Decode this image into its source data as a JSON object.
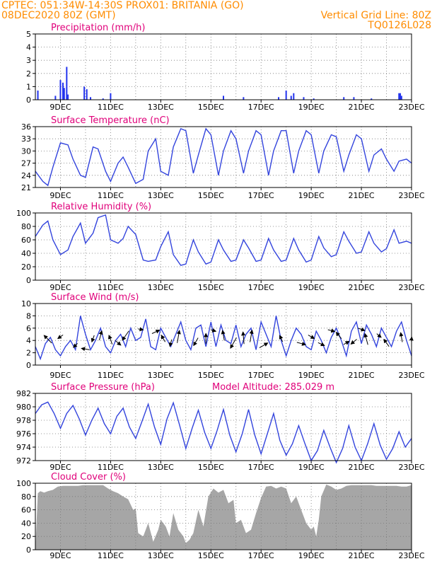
{
  "header": {
    "line1": "CPTEC:  051:34W-14:30S  PROX01: BRITANIA (GO)",
    "line2_left": "08DEC2020 80Z (GMT)",
    "line2_right": "Vertical Grid Line: 80Z",
    "line3_right": "TQ0126L028"
  },
  "colors": {
    "header": "#ff8c00",
    "panel_title": "#e0007a",
    "series": "#3344dd",
    "bars": "#2233ee",
    "cloud": "#a6a6a6",
    "arrow": "#000000"
  },
  "chart_data": [
    {
      "type": "bar",
      "title": "Precipitation (mm/h)",
      "ylim": [
        0,
        5
      ],
      "yticks": [
        0,
        1,
        2,
        3,
        4,
        5
      ],
      "grid": true,
      "x": [
        8.1,
        8.8,
        9.0,
        9.1,
        9.15,
        9.25,
        9.3,
        9.95,
        10.05,
        10.2,
        10.7,
        11.0,
        15.5,
        16.3,
        17.7,
        18.0,
        18.2,
        18.3,
        18.7,
        19.1,
        20.3,
        20.7,
        21.4,
        22.5,
        22.55,
        22.6
      ],
      "values": [
        0.7,
        0.3,
        1.5,
        1.3,
        0.9,
        2.5,
        0.4,
        1.0,
        0.8,
        0.2,
        0.1,
        0.5,
        0.3,
        0.2,
        0.2,
        0.7,
        0.3,
        0.5,
        0.2,
        0.1,
        0.2,
        0.2,
        0.1,
        0.5,
        0.5,
        0.3
      ]
    },
    {
      "type": "line",
      "title": "Surface Temperature (nC)",
      "ylim": [
        21,
        36
      ],
      "yticks": [
        21,
        24,
        27,
        30,
        33,
        36
      ],
      "grid": true,
      "series": [
        {
          "x": [
            8.0,
            8.3,
            8.5,
            8.7,
            9.0,
            9.3,
            9.5,
            9.8,
            10.0,
            10.3,
            10.5,
            10.8,
            11.0,
            11.3,
            11.5,
            11.7,
            12.0,
            12.3,
            12.5,
            12.8,
            13.0,
            13.3,
            13.5,
            13.8,
            14.0,
            14.3,
            14.5,
            14.8,
            15.0,
            15.3,
            15.5,
            15.8,
            16.0,
            16.3,
            16.5,
            16.8,
            17.0,
            17.3,
            17.5,
            17.8,
            18.0,
            18.3,
            18.5,
            18.8,
            19.0,
            19.3,
            19.5,
            19.8,
            20.0,
            20.3,
            20.5,
            20.8,
            21.0,
            21.3,
            21.5,
            21.8,
            22.0,
            22.3,
            22.5,
            22.8,
            23.0
          ],
          "y": [
            25.0,
            22.5,
            21.5,
            26.0,
            32.0,
            31.5,
            28.0,
            24.0,
            23.5,
            31.0,
            30.5,
            25.0,
            22.5,
            27.0,
            28.5,
            26.0,
            22.0,
            23.0,
            30.0,
            33.0,
            25.0,
            24.0,
            31.0,
            35.5,
            35.0,
            24.5,
            29.0,
            35.5,
            34.0,
            24.0,
            30.0,
            35.0,
            33.0,
            24.5,
            30.0,
            35.0,
            34.0,
            24.0,
            30.0,
            35.0,
            35.0,
            24.5,
            30.0,
            35.0,
            34.0,
            24.5,
            30.0,
            34.0,
            33.5,
            25.0,
            29.0,
            34.0,
            33.0,
            25.0,
            29.0,
            30.5,
            28.0,
            25.0,
            27.5,
            28.0,
            27.0
          ]
        }
      ]
    },
    {
      "type": "line",
      "title": "Relative Humidity (%)",
      "ylim": [
        0,
        100
      ],
      "yticks": [
        0,
        20,
        40,
        60,
        80,
        100
      ],
      "grid": true,
      "series": [
        {
          "x": [
            8.0,
            8.3,
            8.5,
            8.7,
            9.0,
            9.3,
            9.5,
            9.8,
            10.0,
            10.3,
            10.5,
            10.8,
            11.0,
            11.3,
            11.5,
            11.7,
            12.0,
            12.3,
            12.5,
            12.8,
            13.0,
            13.3,
            13.5,
            13.8,
            14.0,
            14.3,
            14.5,
            14.8,
            15.0,
            15.3,
            15.5,
            15.8,
            16.0,
            16.3,
            16.5,
            16.8,
            17.0,
            17.3,
            17.5,
            17.8,
            18.0,
            18.3,
            18.5,
            18.8,
            19.0,
            19.3,
            19.5,
            19.8,
            20.0,
            20.3,
            20.5,
            20.8,
            21.0,
            21.3,
            21.5,
            21.8,
            22.0,
            22.3,
            22.5,
            22.8,
            23.0
          ],
          "y": [
            65.0,
            82.0,
            88.0,
            60.0,
            38.0,
            45.0,
            65.0,
            85.0,
            55.0,
            70.0,
            93.0,
            97.0,
            60.0,
            55.0,
            62.0,
            80.0,
            68.0,
            30.0,
            28.0,
            30.0,
            50.0,
            72.0,
            38.0,
            22.0,
            24.0,
            60.0,
            42.0,
            24.0,
            27.0,
            60.0,
            45.0,
            28.0,
            30.0,
            60.0,
            48.0,
            28.0,
            30.0,
            62.0,
            45.0,
            28.0,
            30.0,
            62.0,
            45.0,
            27.0,
            30.0,
            65.0,
            48.0,
            35.0,
            38.0,
            72.0,
            58.0,
            40.0,
            42.0,
            72.0,
            55.0,
            42.0,
            47.0,
            75.0,
            55.0,
            58.0,
            55.0
          ]
        }
      ]
    },
    {
      "type": "line",
      "title": "Surface Wind (m/s)",
      "ylim": [
        0,
        10
      ],
      "yticks": [
        0,
        2,
        4,
        6,
        8,
        10
      ],
      "grid": true,
      "series": [
        {
          "x": [
            8.0,
            8.2,
            8.4,
            8.6,
            8.8,
            9.0,
            9.2,
            9.4,
            9.6,
            9.8,
            10.0,
            10.2,
            10.4,
            10.6,
            10.8,
            11.0,
            11.2,
            11.4,
            11.6,
            11.8,
            12.0,
            12.2,
            12.4,
            12.6,
            12.8,
            13.0,
            13.2,
            13.4,
            13.6,
            13.8,
            14.0,
            14.2,
            14.4,
            14.6,
            14.8,
            15.0,
            15.2,
            15.4,
            15.6,
            15.8,
            16.0,
            16.2,
            16.4,
            16.6,
            16.8,
            17.0,
            17.2,
            17.4,
            17.6,
            17.8,
            18.0,
            18.2,
            18.4,
            18.6,
            18.8,
            19.0,
            19.2,
            19.4,
            19.6,
            19.8,
            20.0,
            20.2,
            20.4,
            20.6,
            20.8,
            21.0,
            21.2,
            21.4,
            21.6,
            21.8,
            22.0,
            22.2,
            22.4,
            22.6,
            22.8,
            23.0
          ],
          "y": [
            3.0,
            1.0,
            3.5,
            4.5,
            2.5,
            1.5,
            3.0,
            4.0,
            2.5,
            8.0,
            5.0,
            2.5,
            4.0,
            6.0,
            3.0,
            2.0,
            4.0,
            5.0,
            3.0,
            6.0,
            4.0,
            4.5,
            7.5,
            3.0,
            2.5,
            6.0,
            4.5,
            3.0,
            5.0,
            7.0,
            4.0,
            2.5,
            6.0,
            6.5,
            3.0,
            7.0,
            3.0,
            6.5,
            4.0,
            3.5,
            6.5,
            3.0,
            5.0,
            6.0,
            2.5,
            7.0,
            5.0,
            3.0,
            8.0,
            4.0,
            1.5,
            4.0,
            6.0,
            5.0,
            3.0,
            2.5,
            5.5,
            4.0,
            2.0,
            4.5,
            6.0,
            4.0,
            1.5,
            5.5,
            7.0,
            3.5,
            6.5,
            5.0,
            3.0,
            6.0,
            4.5,
            3.0,
            5.5,
            7.0,
            4.0,
            1.5
          ]
        }
      ],
      "wind_arrows": [
        {
          "x": 8.5,
          "y": 4.2,
          "dir_deg": 135,
          "speed": 3.4
        },
        {
          "x": 9.0,
          "y": 4.6,
          "dir_deg": 215,
          "speed": 2.0
        },
        {
          "x": 9.6,
          "y": 3.2,
          "dir_deg": 225,
          "speed": 1.8
        },
        {
          "x": 10.0,
          "y": 2.6,
          "dir_deg": 170,
          "speed": 2.6
        },
        {
          "x": 10.3,
          "y": 4.3,
          "dir_deg": 250,
          "speed": 2.2
        },
        {
          "x": 10.6,
          "y": 4.8,
          "dir_deg": 75,
          "speed": 3.0
        },
        {
          "x": 11.0,
          "y": 4.1,
          "dir_deg": 110,
          "speed": 3.0
        },
        {
          "x": 11.3,
          "y": 3.6,
          "dir_deg": 320,
          "speed": 2.2
        },
        {
          "x": 11.6,
          "y": 4.8,
          "dir_deg": 235,
          "speed": 3.6
        },
        {
          "x": 12.2,
          "y": 5.8,
          "dir_deg": 350,
          "speed": 1.6
        },
        {
          "x": 12.8,
          "y": 5.4,
          "dir_deg": 25,
          "speed": 2.6
        },
        {
          "x": 13.1,
          "y": 4.3,
          "dir_deg": 120,
          "speed": 2.4
        },
        {
          "x": 13.4,
          "y": 3.6,
          "dir_deg": 255,
          "speed": 2.2
        },
        {
          "x": 13.7,
          "y": 4.6,
          "dir_deg": 80,
          "speed": 4.0
        },
        {
          "x": 14.4,
          "y": 3.8,
          "dir_deg": 240,
          "speed": 2.8
        },
        {
          "x": 14.8,
          "y": 4.3,
          "dir_deg": 90,
          "speed": 3.2
        },
        {
          "x": 15.1,
          "y": 5.6,
          "dir_deg": 345,
          "speed": 1.6
        },
        {
          "x": 15.5,
          "y": 4.8,
          "dir_deg": 100,
          "speed": 3.2
        },
        {
          "x": 15.9,
          "y": 3.6,
          "dir_deg": 240,
          "speed": 3.8
        },
        {
          "x": 16.3,
          "y": 4.4,
          "dir_deg": 95,
          "speed": 3.8
        },
        {
          "x": 16.6,
          "y": 4.7,
          "dir_deg": 80,
          "speed": 3.8
        },
        {
          "x": 17.1,
          "y": 3.2,
          "dir_deg": 30,
          "speed": 3.0
        },
        {
          "x": 17.8,
          "y": 4.3,
          "dir_deg": 115,
          "speed": 2.2
        },
        {
          "x": 18.6,
          "y": 3.5,
          "dir_deg": 345,
          "speed": 2.8
        },
        {
          "x": 19.0,
          "y": 4.6,
          "dir_deg": 330,
          "speed": 2.2
        },
        {
          "x": 19.4,
          "y": 3.4,
          "dir_deg": 335,
          "speed": 2.2
        },
        {
          "x": 19.8,
          "y": 5.6,
          "dir_deg": 345,
          "speed": 2.2
        },
        {
          "x": 20.1,
          "y": 4.8,
          "dir_deg": 130,
          "speed": 2.6
        },
        {
          "x": 20.4,
          "y": 3.6,
          "dir_deg": 30,
          "speed": 2.0
        },
        {
          "x": 20.7,
          "y": 3.8,
          "dir_deg": 220,
          "speed": 2.4
        },
        {
          "x": 21.0,
          "y": 5.8,
          "dir_deg": 340,
          "speed": 2.2
        },
        {
          "x": 21.2,
          "y": 4.2,
          "dir_deg": 105,
          "speed": 3.6
        },
        {
          "x": 21.7,
          "y": 4.8,
          "dir_deg": 320,
          "speed": 1.8
        },
        {
          "x": 22.0,
          "y": 3.6,
          "dir_deg": 125,
          "speed": 2.8
        },
        {
          "x": 22.6,
          "y": 4.5,
          "dir_deg": 100,
          "speed": 3.0
        },
        {
          "x": 23.0,
          "y": 4.2,
          "dir_deg": 85,
          "speed": 1.4
        }
      ]
    },
    {
      "type": "line",
      "title": "Surface Pressure (hPa)",
      "annotation": "Model Altitude: 285.029 m",
      "ylim": [
        972,
        982
      ],
      "yticks": [
        972,
        974,
        976,
        978,
        980,
        982
      ],
      "grid": true,
      "series": [
        {
          "x": [
            8.0,
            8.25,
            8.5,
            8.75,
            9.0,
            9.25,
            9.5,
            9.75,
            10.0,
            10.25,
            10.5,
            10.75,
            11.0,
            11.25,
            11.5,
            11.75,
            12.0,
            12.25,
            12.5,
            12.75,
            13.0,
            13.25,
            13.5,
            13.75,
            14.0,
            14.25,
            14.5,
            14.75,
            15.0,
            15.25,
            15.5,
            15.75,
            16.0,
            16.25,
            16.5,
            16.75,
            17.0,
            17.25,
            17.5,
            17.75,
            18.0,
            18.25,
            18.5,
            18.75,
            19.0,
            19.25,
            19.5,
            19.75,
            20.0,
            20.25,
            20.5,
            20.75,
            21.0,
            21.25,
            21.5,
            21.75,
            22.0,
            22.25,
            22.5,
            22.75,
            23.0
          ],
          "y": [
            979.0,
            980.3,
            980.7,
            979.0,
            976.8,
            979.0,
            980.2,
            978.2,
            975.8,
            978.0,
            979.8,
            977.5,
            976.0,
            978.6,
            979.8,
            977.0,
            975.3,
            977.8,
            980.4,
            977.0,
            974.4,
            978.2,
            980.6,
            977.3,
            973.8,
            976.8,
            979.5,
            976.2,
            973.8,
            976.5,
            979.6,
            975.8,
            973.3,
            976.0,
            979.6,
            975.8,
            973.0,
            976.0,
            979.0,
            975.0,
            972.8,
            974.5,
            977.2,
            974.5,
            972.0,
            973.5,
            976.5,
            974.0,
            971.7,
            973.8,
            977.2,
            974.0,
            972.0,
            974.5,
            977.5,
            974.3,
            972.2,
            973.8,
            976.3,
            974.0,
            975.3
          ]
        }
      ]
    },
    {
      "type": "area",
      "title": "Cloud Cover (%)",
      "ylim": [
        0,
        100
      ],
      "yticks": [
        0,
        20,
        40,
        60,
        80,
        100
      ],
      "grid": true,
      "series": [
        {
          "x": [
            8.0,
            8.1,
            8.2,
            8.35,
            8.5,
            8.7,
            8.9,
            9.1,
            9.3,
            9.5,
            9.7,
            9.9,
            10.1,
            10.3,
            10.5,
            10.7,
            10.9,
            11.1,
            11.3,
            11.5,
            11.7,
            11.9,
            12.0,
            12.1,
            12.3,
            12.5,
            12.7,
            12.9,
            13.0,
            13.2,
            13.35,
            13.5,
            13.7,
            13.9,
            14.0,
            14.15,
            14.3,
            14.5,
            14.7,
            14.9,
            15.1,
            15.3,
            15.5,
            15.7,
            15.9,
            16.0,
            16.2,
            16.4,
            16.6,
            16.8,
            17.0,
            17.2,
            17.4,
            17.6,
            17.8,
            18.0,
            18.2,
            18.4,
            18.6,
            18.8,
            19.0,
            19.1,
            19.2,
            19.3,
            19.4,
            19.6,
            19.8,
            20.0,
            20.2,
            20.4,
            20.6,
            20.8,
            21.0,
            21.2,
            21.4,
            21.6,
            21.8,
            22.0,
            22.2,
            22.4,
            22.6,
            22.8,
            23.0
          ],
          "y": [
            0,
            85,
            88,
            86,
            88,
            90,
            95,
            96,
            96,
            96,
            96,
            97,
            97,
            97,
            97,
            97,
            92,
            88,
            85,
            80,
            76,
            60,
            62,
            25,
            20,
            40,
            12,
            30,
            45,
            35,
            20,
            55,
            30,
            20,
            10,
            15,
            25,
            60,
            35,
            80,
            92,
            86,
            90,
            70,
            75,
            40,
            45,
            25,
            30,
            55,
            78,
            95,
            96,
            92,
            95,
            92,
            70,
            80,
            60,
            40,
            30,
            35,
            20,
            45,
            80,
            98,
            95,
            90,
            92,
            96,
            97,
            97,
            97,
            97,
            97,
            96,
            96,
            96,
            96,
            96,
            95,
            95,
            97
          ]
        }
      ]
    }
  ],
  "x_axis": {
    "range": [
      "08DEC",
      "23DEC"
    ],
    "labels": [
      "9DEC",
      "11DEC",
      "13DEC",
      "15DEC",
      "17DEC",
      "19DEC",
      "21DEC",
      "23DEC"
    ]
  }
}
